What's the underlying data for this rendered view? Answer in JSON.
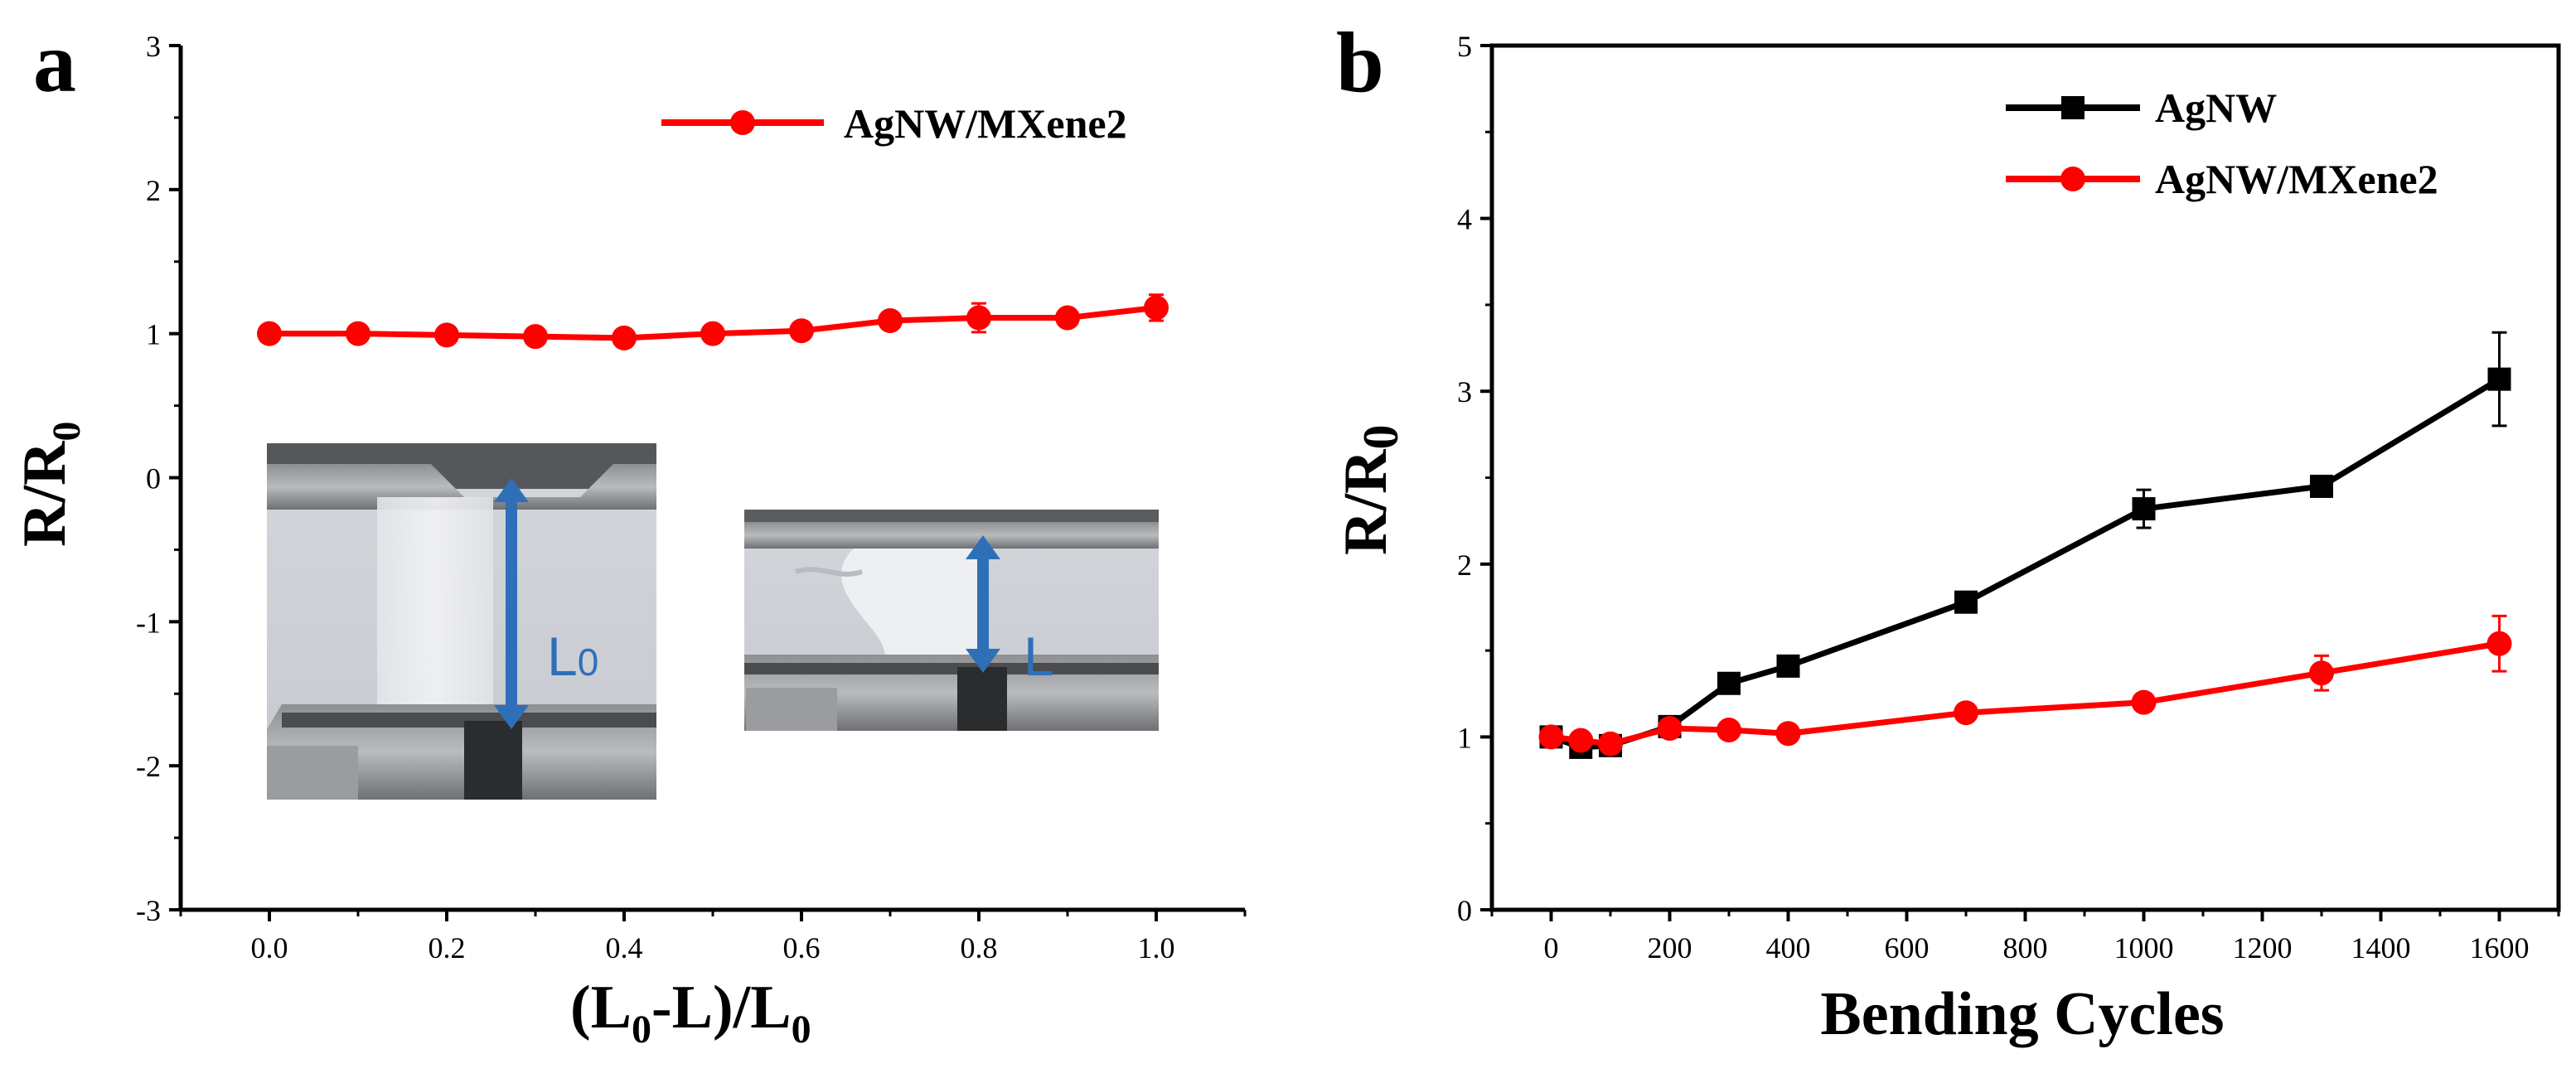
{
  "chart_data": [
    {
      "panel": "a",
      "type": "line",
      "xlabel": "(L0-L)/L0",
      "xlabel_parts": {
        "open": "(L",
        "sub1": "0",
        "mid": "-L)/L",
        "sub2": "0"
      },
      "ylabel": "R/R0",
      "ylabel_parts": {
        "main": "R/R",
        "sub": "0"
      },
      "xlim": [
        -0.1,
        1.1
      ],
      "ylim": [
        -3,
        3
      ],
      "xticks": [
        0.0,
        0.2,
        0.4,
        0.6,
        0.8,
        1.0
      ],
      "xtick_labels": [
        "0.0",
        "0.2",
        "0.4",
        "0.6",
        "0.8",
        "1.0"
      ],
      "yticks": [
        -3,
        -2,
        -1,
        0,
        1,
        2,
        3
      ],
      "ytick_labels": [
        "-3",
        "-2",
        "-1",
        "0",
        "1",
        "2",
        "3"
      ],
      "legend_position": "top-right",
      "grid": false,
      "series": [
        {
          "name": "AgNW/MXene2",
          "color": "#ff0000",
          "marker": "circle",
          "x": [
            0.0,
            0.1,
            0.2,
            0.3,
            0.4,
            0.5,
            0.6,
            0.7,
            0.8,
            0.9,
            1.0
          ],
          "y": [
            1.0,
            1.0,
            0.99,
            0.98,
            0.97,
            1.0,
            1.02,
            1.09,
            1.11,
            1.11,
            1.18
          ],
          "err": [
            0.02,
            0.02,
            0.02,
            0.02,
            0.02,
            0.02,
            0.03,
            0.04,
            0.1,
            0.04,
            0.09
          ]
        }
      ],
      "insets": [
        {
          "name": "inset-photo-original",
          "label": "L0",
          "label_parts": {
            "main": "L",
            "sub": "0"
          },
          "arrow_color": "#2f6fb8"
        },
        {
          "name": "inset-photo-compressed",
          "label": "L",
          "label_parts": {
            "main": "L",
            "sub": ""
          },
          "arrow_color": "#2f6fb8"
        }
      ]
    },
    {
      "panel": "b",
      "type": "line",
      "xlabel": "Bending Cycles",
      "ylabel": "R/R0",
      "ylabel_parts": {
        "main": "R/R",
        "sub": "0"
      },
      "xlim": [
        -100,
        1700
      ],
      "ylim": [
        0,
        5
      ],
      "xticks": [
        0,
        200,
        400,
        600,
        800,
        1000,
        1200,
        1400,
        1600
      ],
      "xtick_labels": [
        "0",
        "200",
        "400",
        "600",
        "800",
        "1000",
        "1200",
        "1400",
        "1600"
      ],
      "yticks": [
        0,
        1,
        2,
        3,
        4,
        5
      ],
      "ytick_labels": [
        "0",
        "1",
        "2",
        "3",
        "4",
        "5"
      ],
      "legend_position": "top-right",
      "grid": false,
      "series": [
        {
          "name": "AgNW",
          "color": "#000000",
          "marker": "square",
          "x": [
            0,
            50,
            100,
            200,
            300,
            400,
            700,
            1000,
            1300,
            1600
          ],
          "y": [
            1.0,
            0.94,
            0.95,
            1.06,
            1.31,
            1.41,
            1.78,
            2.32,
            2.45,
            3.07
          ],
          "err": [
            0.03,
            0.03,
            0.03,
            0.03,
            0.03,
            0.03,
            0.03,
            0.11,
            0.03,
            0.27
          ]
        },
        {
          "name": "AgNW/MXene2",
          "color": "#ff0000",
          "marker": "circle",
          "x": [
            0,
            50,
            100,
            200,
            300,
            400,
            700,
            1000,
            1300,
            1600
          ],
          "y": [
            1.0,
            0.98,
            0.96,
            1.05,
            1.04,
            1.02,
            1.14,
            1.2,
            1.37,
            1.54
          ],
          "err": [
            0.02,
            0.02,
            0.02,
            0.03,
            0.02,
            0.02,
            0.02,
            0.03,
            0.1,
            0.16
          ]
        }
      ]
    }
  ]
}
